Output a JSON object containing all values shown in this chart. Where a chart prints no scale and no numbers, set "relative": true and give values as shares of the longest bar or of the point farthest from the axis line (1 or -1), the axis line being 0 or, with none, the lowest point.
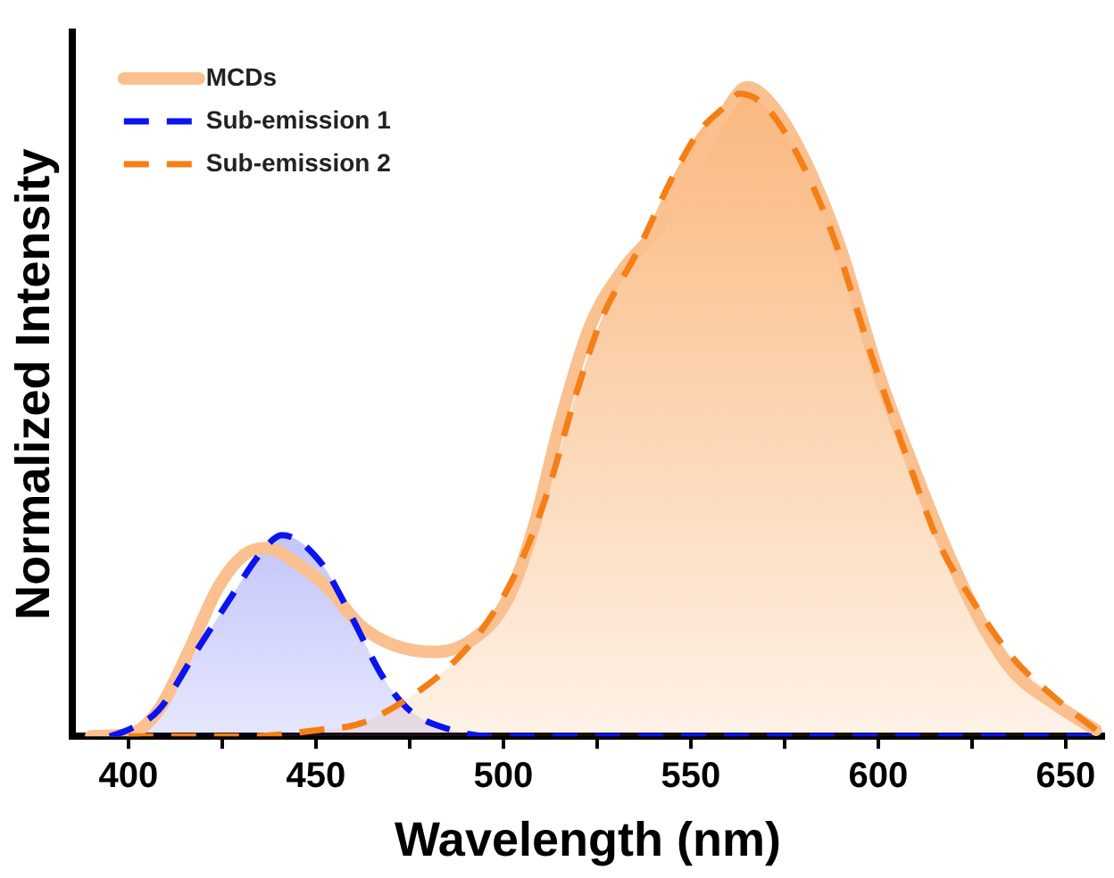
{
  "chart_data": {
    "type": "line",
    "xlabel": "Wavelength (nm)",
    "ylabel": "Normalized Intensity",
    "relative": true,
    "xlim": [
      385,
      660
    ],
    "xticks": [
      400,
      {
        "value": 425,
        "label": null
      },
      450,
      {
        "value": 475,
        "label": null
      },
      500,
      {
        "value": 525,
        "label": null
      },
      550,
      {
        "value": 575,
        "label": null
      },
      600,
      {
        "value": 625,
        "label": null
      },
      650
    ],
    "legend": "top left",
    "grid": false,
    "series": [
      {
        "name": "MCDs",
        "color": "#fbc090",
        "line_style": "solid",
        "x": [
          390,
          400,
          408,
          416,
          424,
          431,
          437,
          444,
          453,
          462,
          471,
          482,
          492,
          501,
          508,
          515,
          523,
          532,
          541,
          550,
          559,
          565,
          572,
          581,
          590,
          600,
          609,
          618,
          627,
          636,
          647,
          658
        ],
        "values": [
          0,
          0.003,
          0.04,
          0.13,
          0.23,
          0.28,
          0.29,
          0.27,
          0.23,
          0.17,
          0.14,
          0.13,
          0.15,
          0.21,
          0.32,
          0.48,
          0.63,
          0.72,
          0.78,
          0.87,
          0.96,
          1,
          0.97,
          0.88,
          0.75,
          0.56,
          0.42,
          0.29,
          0.18,
          0.1,
          0.05,
          0.01
        ]
      },
      {
        "name": "Sub-emission 1",
        "type": "area",
        "color": "#0a14f0",
        "line_style": "dashed",
        "x": [
          395,
          400,
          408,
          418,
          428,
          435,
          441,
          451,
          459,
          468,
          475,
          486,
          497,
          520,
          560,
          600,
          640,
          660
        ],
        "values": [
          0,
          0.01,
          0.04,
          0.13,
          0.22,
          0.28,
          0.31,
          0.27,
          0.19,
          0.09,
          0.04,
          0.01,
          0,
          0,
          0,
          0,
          0,
          0
        ]
      },
      {
        "name": "Sub-emission 2",
        "type": "area",
        "color": "#f57f17",
        "line_style": "dashed",
        "x": [
          400,
          431,
          451,
          462,
          475,
          486,
          495,
          504,
          512,
          519,
          526,
          536,
          545,
          552,
          559,
          563,
          570,
          579,
          588,
          598,
          607,
          616,
          625,
          636,
          647,
          658
        ],
        "values": [
          0,
          0,
          0.01,
          0.02,
          0.06,
          0.11,
          0.17,
          0.26,
          0.38,
          0.52,
          0.64,
          0.75,
          0.86,
          0.93,
          0.97,
          0.99,
          0.97,
          0.89,
          0.77,
          0.59,
          0.44,
          0.3,
          0.21,
          0.12,
          0.06,
          0.01
        ]
      }
    ]
  }
}
